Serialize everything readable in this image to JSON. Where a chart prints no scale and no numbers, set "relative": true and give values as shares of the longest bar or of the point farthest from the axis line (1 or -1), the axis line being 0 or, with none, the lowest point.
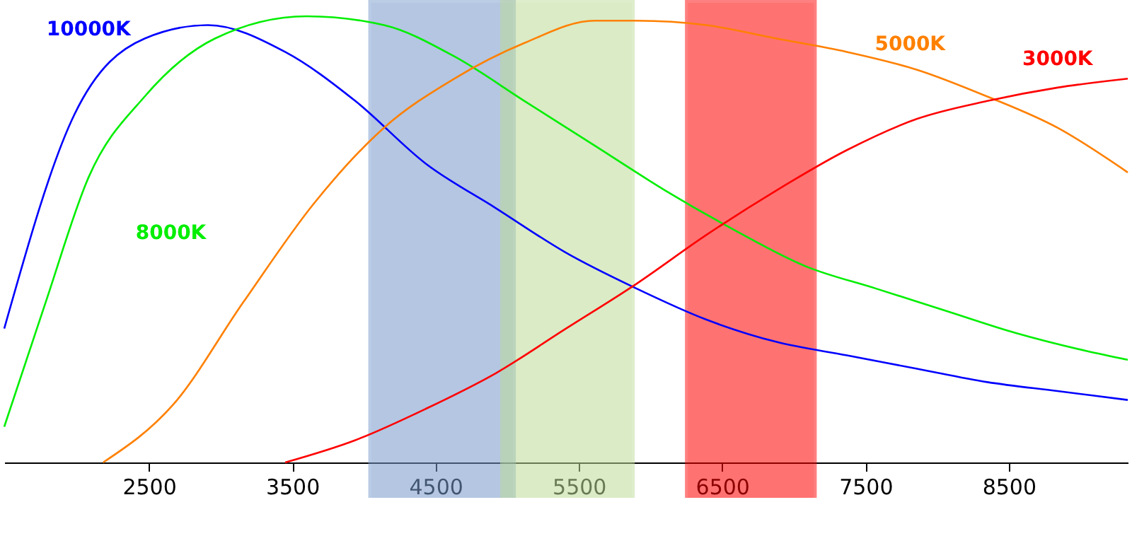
{
  "chart_data": {
    "type": "line",
    "relative": true,
    "xlim": [
      1490,
      9330
    ],
    "xticks": [
      2500,
      3500,
      4500,
      5500,
      6500,
      7500,
      8500
    ],
    "tick_labels": "x",
    "grid": false,
    "marker": "none",
    "line_style": "solid",
    "series": [
      {
        "name": "10000K",
        "color": "#0000ff",
        "x": [
          1490,
          1980,
          2470,
          2910,
          3450,
          3940,
          4430,
          4920,
          5410,
          5900,
          6390,
          6880,
          7370,
          7860,
          8350,
          8840,
          9330
        ],
        "values": [
          0.3,
          0.78,
          0.95,
          0.98,
          0.92,
          0.81,
          0.67,
          0.57,
          0.47,
          0.39,
          0.32,
          0.27,
          0.24,
          0.21,
          0.18,
          0.16,
          0.14
        ]
      },
      {
        "name": "8000K",
        "color": "#00ee00",
        "x": [
          1490,
          1780,
          2080,
          2470,
          2960,
          3600,
          4140,
          4630,
          5120,
          5610,
          6100,
          6590,
          7080,
          7570,
          8060,
          8550,
          9040,
          9330
        ],
        "values": [
          0.08,
          0.36,
          0.64,
          0.82,
          0.95,
          1.0,
          0.98,
          0.91,
          0.81,
          0.71,
          0.61,
          0.52,
          0.44,
          0.39,
          0.34,
          0.29,
          0.25,
          0.23
        ]
      },
      {
        "name": "5000K",
        "color": "#ff8000",
        "x": [
          2180,
          2670,
          3160,
          3650,
          4140,
          4630,
          5120,
          5610,
          5900,
          6390,
          6880,
          7370,
          7860,
          8350,
          8840,
          9330
        ],
        "values": [
          0,
          0.13,
          0.36,
          0.58,
          0.75,
          0.86,
          0.94,
          0.99,
          0.99,
          0.98,
          0.95,
          0.92,
          0.88,
          0.82,
          0.75,
          0.65
        ]
      },
      {
        "name": "3000K",
        "color": "#ff0000",
        "x": [
          3450,
          3940,
          4430,
          4920,
          5410,
          5900,
          6390,
          6880,
          7370,
          7860,
          8350,
          8840,
          9330
        ],
        "values": [
          0,
          0.05,
          0.12,
          0.2,
          0.3,
          0.4,
          0.51,
          0.61,
          0.7,
          0.77,
          0.81,
          0.84,
          0.86
        ]
      }
    ],
    "bands": [
      {
        "axis": "x",
        "from": 4050,
        "to": 5040,
        "color": "#7799cc"
      },
      {
        "axis": "x",
        "from": 4970,
        "to": 5870,
        "color": "#bcdc98"
      },
      {
        "axis": "x",
        "from": 6260,
        "to": 7140,
        "color": "#ff0000"
      }
    ]
  }
}
